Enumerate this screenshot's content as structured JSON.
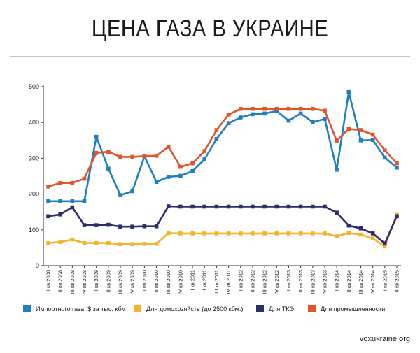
{
  "header": {
    "title": "ЦЕНА ГАЗА В УКРАИНЕ"
  },
  "footer": {
    "source": "voxukraine.org"
  },
  "chart_data": {
    "type": "line",
    "title": "ЦЕНА ГАЗА В УКРАИНЕ",
    "xlabel": "",
    "ylabel": "",
    "ylim": [
      0,
      500
    ],
    "yticks": [
      0,
      100,
      200,
      300,
      400,
      500
    ],
    "grid": false,
    "legend_position": "bottom",
    "categories": [
      "I кв 2008",
      "II кв 2008",
      "III кв 2008",
      "IV кв 2008",
      "I кв 2009",
      "II кв 2009",
      "III кв 2009",
      "IV кв 2009",
      "I кв 2010",
      "II кв 2010",
      "III кв 2010",
      "IV кв 2010",
      "I кв 2011",
      "II кв 2011",
      "III кв 2011",
      "IV кв 2011",
      "I кв 2012",
      "II кв 2012",
      "III кв 2012",
      "IV кв 2012",
      "I кв 2013",
      "II кв 2013",
      "III кв 2013",
      "IV кв 2013",
      "I кв 2014",
      "II кв 2014",
      "III кв 2014",
      "IV кв 2014",
      "I кв 2015",
      "II кв 2015"
    ],
    "series": [
      {
        "name": "Импортного газа, $ за тыс. кбм",
        "color": "#1f7fc1",
        "values": [
          180,
          180,
          180,
          180,
          360,
          271,
          197,
          208,
          305,
          234,
          248,
          251,
          264,
          297,
          354,
          398,
          414,
          423,
          425,
          432,
          405,
          425,
          401,
          410,
          268,
          485,
          350,
          351,
          302,
          274
        ]
      },
      {
        "name": "Для домохозяйств (до 2500 кбм.)",
        "color": "#f5b330",
        "values": [
          63,
          66,
          73,
          63,
          63,
          63,
          60,
          60,
          61,
          61,
          91,
          90,
          90,
          90,
          90,
          90,
          90,
          90,
          90,
          90,
          90,
          90,
          90,
          90,
          82,
          91,
          87,
          76,
          54,
          142
        ]
      },
      {
        "name": "Для ТКЭ",
        "color": "#2c2d6b",
        "values": [
          138,
          143,
          163,
          113,
          113,
          114,
          109,
          109,
          110,
          110,
          166,
          165,
          165,
          165,
          165,
          165,
          165,
          165,
          165,
          165,
          165,
          165,
          165,
          165,
          148,
          112,
          104,
          90,
          62,
          138
        ]
      },
      {
        "name": "Для промышленности",
        "color": "#e2552a",
        "values": [
          221,
          231,
          231,
          243,
          315,
          318,
          304,
          304,
          306,
          307,
          332,
          276,
          286,
          320,
          379,
          422,
          438,
          438,
          438,
          438,
          438,
          438,
          438,
          433,
          349,
          382,
          379,
          366,
          322,
          286
        ]
      }
    ]
  }
}
